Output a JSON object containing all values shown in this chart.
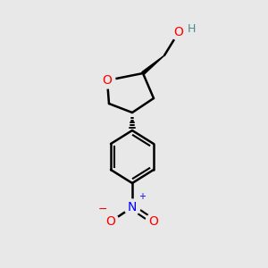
{
  "background_color": "#e8e8e8",
  "bond_color": "#000000",
  "O_color": "#ff0000",
  "N_color": "#0000ff",
  "H_color": "#4a8a8a",
  "minus_color": "#ff0000",
  "figsize": [
    3.0,
    3.0
  ],
  "dpi": 100,
  "xlim": [
    0,
    300
  ],
  "ylim": [
    0,
    300
  ]
}
